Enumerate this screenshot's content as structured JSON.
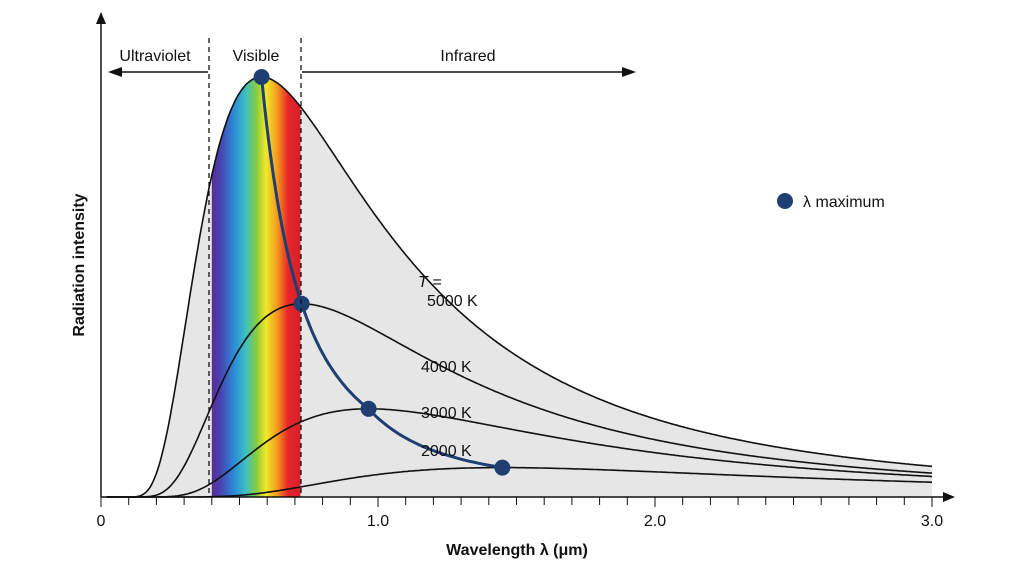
{
  "chart_data": {
    "type": "line",
    "xlabel": "Wavelength λ (μm)",
    "ylabel": "Radiation intensity",
    "xlim": [
      0,
      3.0
    ],
    "x_ticks": [
      "0",
      "1.0",
      "2.0",
      "3.0"
    ],
    "minor_tick_step": 0.1,
    "grid": false,
    "regions": [
      {
        "label": "Ultraviolet",
        "range": [
          0,
          0.4
        ],
        "direction": "left"
      },
      {
        "label": "Visible",
        "range": [
          0.4,
          0.72
        ]
      },
      {
        "label": "Infrared",
        "range": [
          0.72,
          1.95
        ],
        "direction": "right"
      }
    ],
    "temperature_prefix": "T =",
    "series": [
      {
        "name": "5000 K",
        "temperature": 5000,
        "peak_wavelength": 0.58,
        "relative_peak": 1.0
      },
      {
        "name": "4000 K",
        "temperature": 4000,
        "peak_wavelength": 0.72,
        "relative_peak": 0.46
      },
      {
        "name": "3000 K",
        "temperature": 3000,
        "peak_wavelength": 0.97,
        "relative_peak": 0.21
      },
      {
        "name": "2000 K",
        "temperature": 2000,
        "peak_wavelength": 1.45,
        "relative_peak": 0.07
      }
    ],
    "legend": {
      "label": "λ maximum",
      "position": "right"
    },
    "colors": {
      "marker": "#1f3f73",
      "fill": "#e6e6e6",
      "curve": "#111111"
    }
  }
}
